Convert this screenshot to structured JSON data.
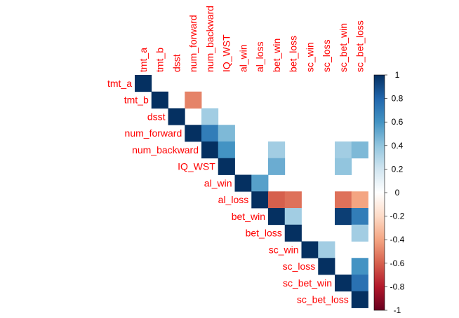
{
  "chart_data": {
    "type": "heatmap",
    "variables": [
      "tmt_a",
      "tmt_b",
      "dsst",
      "num_forward",
      "num_backward",
      "IQ_WST",
      "al_win",
      "al_loss",
      "bet_win",
      "bet_loss",
      "sc_win",
      "sc_loss",
      "sc_bet_win",
      "sc_bet_loss"
    ],
    "triangle": "upper",
    "cells": [
      {
        "row": "tmt_a",
        "col": "tmt_a",
        "value": 1.0
      },
      {
        "row": "tmt_b",
        "col": "tmt_b",
        "value": 1.0
      },
      {
        "row": "tmt_b",
        "col": "num_forward",
        "value": -0.5
      },
      {
        "row": "dsst",
        "col": "dsst",
        "value": 1.0
      },
      {
        "row": "dsst",
        "col": "num_backward",
        "value": 0.35
      },
      {
        "row": "num_forward",
        "col": "num_forward",
        "value": 1.0
      },
      {
        "row": "num_forward",
        "col": "num_backward",
        "value": 0.7
      },
      {
        "row": "num_forward",
        "col": "IQ_WST",
        "value": 0.45
      },
      {
        "row": "num_backward",
        "col": "num_backward",
        "value": 1.0
      },
      {
        "row": "num_backward",
        "col": "IQ_WST",
        "value": 0.6
      },
      {
        "row": "num_backward",
        "col": "bet_win",
        "value": 0.35
      },
      {
        "row": "num_backward",
        "col": "sc_bet_win",
        "value": 0.35
      },
      {
        "row": "num_backward",
        "col": "sc_bet_loss",
        "value": 0.45
      },
      {
        "row": "IQ_WST",
        "col": "IQ_WST",
        "value": 1.0
      },
      {
        "row": "IQ_WST",
        "col": "bet_win",
        "value": 0.5
      },
      {
        "row": "IQ_WST",
        "col": "sc_bet_win",
        "value": 0.4
      },
      {
        "row": "al_win",
        "col": "al_win",
        "value": 1.0
      },
      {
        "row": "al_win",
        "col": "al_loss",
        "value": 0.55
      },
      {
        "row": "al_loss",
        "col": "al_loss",
        "value": 1.0
      },
      {
        "row": "al_loss",
        "col": "bet_win",
        "value": -0.6
      },
      {
        "row": "al_loss",
        "col": "bet_loss",
        "value": -0.55
      },
      {
        "row": "al_loss",
        "col": "sc_bet_win",
        "value": -0.55
      },
      {
        "row": "al_loss",
        "col": "sc_bet_loss",
        "value": -0.4
      },
      {
        "row": "bet_win",
        "col": "bet_win",
        "value": 1.0
      },
      {
        "row": "bet_win",
        "col": "bet_loss",
        "value": 0.35
      },
      {
        "row": "bet_win",
        "col": "sc_bet_win",
        "value": 0.95
      },
      {
        "row": "bet_win",
        "col": "sc_bet_loss",
        "value": 0.7
      },
      {
        "row": "bet_loss",
        "col": "bet_loss",
        "value": 1.0
      },
      {
        "row": "bet_loss",
        "col": "sc_bet_loss",
        "value": 0.35
      },
      {
        "row": "sc_win",
        "col": "sc_win",
        "value": 1.0
      },
      {
        "row": "sc_win",
        "col": "sc_loss",
        "value": 0.35
      },
      {
        "row": "sc_loss",
        "col": "sc_loss",
        "value": 1.0
      },
      {
        "row": "sc_loss",
        "col": "sc_bet_loss",
        "value": 0.6
      },
      {
        "row": "sc_bet_win",
        "col": "sc_bet_win",
        "value": 1.0
      },
      {
        "row": "sc_bet_win",
        "col": "sc_bet_loss",
        "value": 0.75
      },
      {
        "row": "sc_bet_loss",
        "col": "sc_bet_loss",
        "value": 1.0
      }
    ],
    "colorbar": {
      "range": [
        -1,
        1
      ],
      "ticks": [
        "1",
        "0.8",
        "0.6",
        "0.4",
        "0.2",
        "0",
        "-0.2",
        "-0.4",
        "-0.6",
        "-0.8",
        "-1"
      ]
    },
    "colors": {
      "labels": "#ff0000",
      "negative_end": "#67001f",
      "positive_end": "#053061",
      "neutral": "#ffffff"
    }
  }
}
